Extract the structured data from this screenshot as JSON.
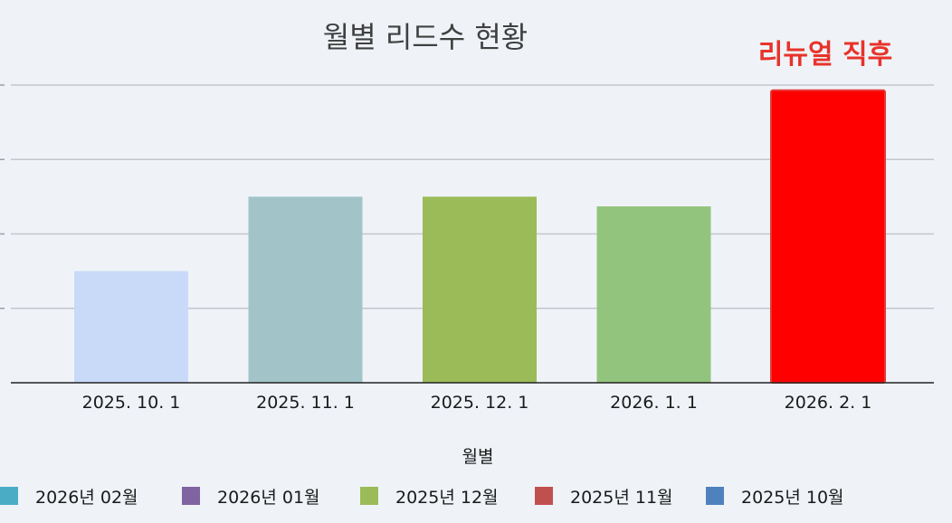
{
  "chart_data": {
    "type": "bar",
    "title": "월별 리드수 현황",
    "annotation": "리뉴얼 직후",
    "xlabel": "월별",
    "ylabel": "",
    "categories": [
      "2025. 10. 1",
      "2025. 11. 1",
      "2025. 12. 1",
      "2026. 1. 1",
      "2026. 2. 1"
    ],
    "values": [
      1.5,
      2.5,
      2.5,
      2.37,
      3.93
    ],
    "bar_colors": [
      "#c9daf8",
      "#a2c4c9",
      "#9bbb59",
      "#93c47d",
      "#ff0000"
    ],
    "ylim": [
      0,
      4
    ],
    "gridlines": [
      1,
      2,
      3,
      4
    ],
    "grid": true,
    "legend_position": "bottom",
    "legend": [
      {
        "label": "2026년 02월",
        "color": "#4bacc6"
      },
      {
        "label": "2026년 01월",
        "color": "#8064a2"
      },
      {
        "label": "2025년 12월",
        "color": "#9bbb59"
      },
      {
        "label": "2025년 11월",
        "color": "#c0504d"
      },
      {
        "label": "2025년 10월",
        "color": "#4f81bd"
      }
    ]
  }
}
